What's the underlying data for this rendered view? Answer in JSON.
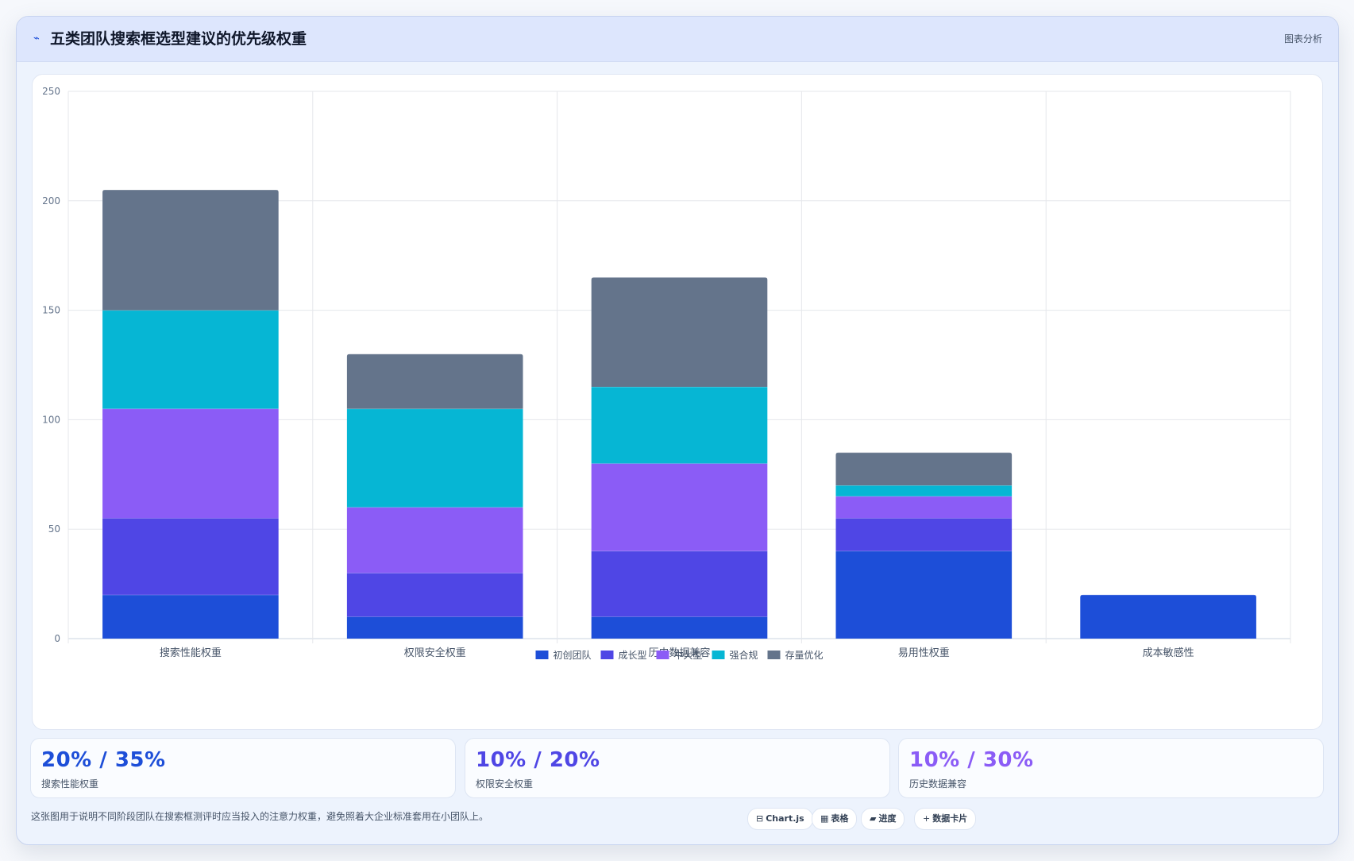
{
  "header": {
    "icon": "chart-line-icon",
    "title": "五类团队搜索框选型建议的优先级权重",
    "tag": "图表分析"
  },
  "chart_data": {
    "type": "bar",
    "stacked": true,
    "categories": [
      "搜索性能权重",
      "权限安全权重",
      "历史数据兼容",
      "易用性权重",
      "成本敏感性"
    ],
    "series": [
      {
        "name": "初创团队",
        "color": "#1d4ed8",
        "values": [
          20,
          10,
          10,
          40,
          20
        ]
      },
      {
        "name": "成长型",
        "color": "#4f46e5",
        "values": [
          35,
          20,
          30,
          15,
          0
        ]
      },
      {
        "name": "中大型",
        "color": "#8b5cf6",
        "values": [
          50,
          30,
          40,
          10,
          0
        ]
      },
      {
        "name": "强合规",
        "color": "#06b6d4",
        "values": [
          45,
          45,
          35,
          5,
          0
        ]
      },
      {
        "name": "存量优化",
        "color": "#64748b",
        "values": [
          55,
          25,
          50,
          15,
          0
        ]
      }
    ],
    "ylim": [
      0,
      250
    ],
    "yticks": [
      0,
      50,
      100,
      150,
      200,
      250
    ],
    "grid": true,
    "legend": "bottom"
  },
  "stats": [
    {
      "value": "20% / 35%",
      "label": "搜索性能权重",
      "color": "#1d4ed8"
    },
    {
      "value": "10% / 20%",
      "label": "权限安全权重",
      "color": "#4f46e5"
    },
    {
      "value": "10% / 30%",
      "label": "历史数据兼容",
      "color": "#8b5cf6"
    }
  ],
  "footer": {
    "note": "这张图用于说明不同阶段团队在搜索框测评时应当投入的注意力权重，避免照着大企业标准套用在小团队上。",
    "chips": [
      {
        "icon": "⊟",
        "icon_name": "chart-icon",
        "label": "Chart.js"
      },
      {
        "icon": "▦",
        "icon_name": "table-icon",
        "label": "表格"
      },
      {
        "icon": "▰",
        "icon_name": "progress-icon",
        "label": "进度"
      },
      {
        "icon": "+",
        "icon_name": "plus-icon",
        "label": "数据卡片"
      }
    ]
  }
}
